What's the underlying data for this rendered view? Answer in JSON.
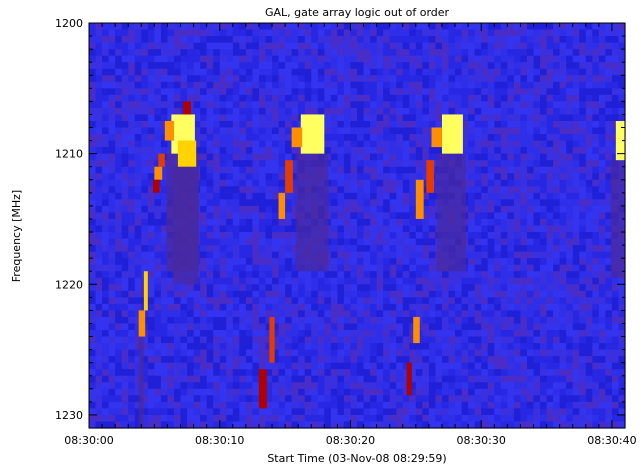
{
  "chart_data": {
    "type": "heatmap",
    "title": "GAL, gate array logic out of order",
    "xlabel": "Start Time (03-Nov-08 08:29:59)",
    "ylabel": "Frequency [MHz]",
    "xlim_seconds": [
      0,
      41
    ],
    "ylim": [
      1200,
      1231
    ],
    "x_tick_labels": [
      "08:30:00",
      "08:30:10",
      "08:30:20",
      "08:30:30",
      "08:30:40"
    ],
    "x_tick_seconds": [
      0,
      10,
      20,
      30,
      40
    ],
    "y_ticks": [
      1200,
      1210,
      1220,
      1230
    ],
    "colormap": [
      "#2a2ae6",
      "#3b3bee",
      "#4c2ad0",
      "#5a1f9a",
      "#7a1a5a",
      "#b00000",
      "#e33b00",
      "#ff8f00",
      "#ffd200",
      "#ffff60"
    ],
    "background_color": "#2a2ae6",
    "grid": false,
    "events": [
      {
        "t": 6.3,
        "f": 1207,
        "w": 1.8,
        "h": 3,
        "value": 9
      },
      {
        "t": 6.8,
        "f": 1209,
        "w": 1.4,
        "h": 2,
        "value": 8
      },
      {
        "t": 7.2,
        "f": 1206,
        "w": 0.6,
        "h": 1,
        "value": 5
      },
      {
        "t": 5.3,
        "f": 1210,
        "w": 0.5,
        "h": 1,
        "value": 6
      },
      {
        "t": 5.0,
        "f": 1211,
        "w": 0.6,
        "h": 1,
        "value": 7
      },
      {
        "t": 4.9,
        "f": 1212,
        "w": 0.5,
        "h": 1,
        "value": 5
      },
      {
        "t": 5.8,
        "f": 1207.5,
        "w": 0.7,
        "h": 1.5,
        "value": 7
      },
      {
        "t": 4.2,
        "f": 1219,
        "w": 0.3,
        "h": 3,
        "value": 8
      },
      {
        "t": 3.8,
        "f": 1222,
        "w": 0.5,
        "h": 2,
        "value": 7
      },
      {
        "t": 16.2,
        "f": 1207,
        "w": 1.8,
        "h": 3,
        "value": 9
      },
      {
        "t": 15.5,
        "f": 1208,
        "w": 0.8,
        "h": 1.5,
        "value": 7
      },
      {
        "t": 15.0,
        "f": 1210.5,
        "w": 0.6,
        "h": 2.5,
        "value": 6
      },
      {
        "t": 14.5,
        "f": 1213,
        "w": 0.5,
        "h": 2,
        "value": 7
      },
      {
        "t": 13.8,
        "f": 1222.5,
        "w": 0.4,
        "h": 3.5,
        "value": 6
      },
      {
        "t": 13.0,
        "f": 1226.5,
        "w": 0.6,
        "h": 3,
        "value": 5
      },
      {
        "t": 27.0,
        "f": 1207,
        "w": 1.6,
        "h": 3,
        "value": 9
      },
      {
        "t": 26.2,
        "f": 1208,
        "w": 0.8,
        "h": 1.5,
        "value": 7
      },
      {
        "t": 25.8,
        "f": 1210.5,
        "w": 0.6,
        "h": 2.5,
        "value": 6
      },
      {
        "t": 25.0,
        "f": 1212,
        "w": 0.6,
        "h": 3,
        "value": 7
      },
      {
        "t": 24.8,
        "f": 1222.5,
        "w": 0.5,
        "h": 2,
        "value": 7
      },
      {
        "t": 24.3,
        "f": 1226,
        "w": 0.4,
        "h": 2.5,
        "value": 5
      },
      {
        "t": 40.3,
        "f": 1207.5,
        "w": 0.7,
        "h": 3,
        "value": 9
      }
    ]
  }
}
